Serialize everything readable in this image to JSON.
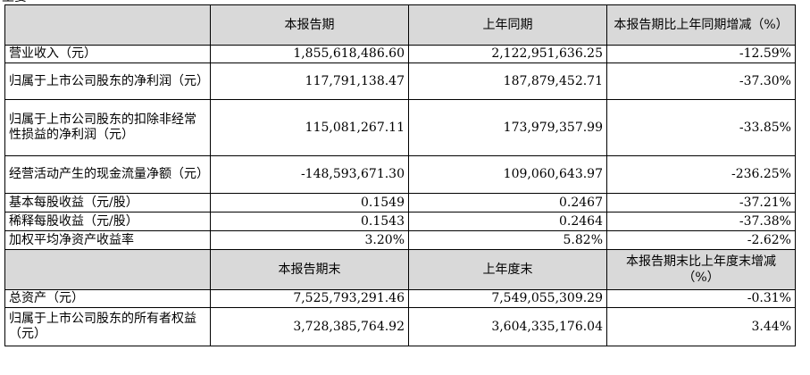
{
  "top_fragment": "主要",
  "header1": {
    "col2": "本报告期",
    "col3": "上年同期",
    "col4": "本报告期比上年同期增减（%）"
  },
  "rows1": [
    {
      "label": "营业收入（元）",
      "current": "1,855,618,486.60",
      "prior": "2,122,951,636.25",
      "change": "-12.59%"
    },
    {
      "label": "归属于上市公司股东的净利润（元）",
      "current": "117,791,138.47",
      "prior": "187,879,452.71",
      "change": "-37.30%"
    },
    {
      "label": "归属于上市公司股东的扣除非经常性损益的净利润（元）",
      "current": "115,081,267.11",
      "prior": "173,979,357.99",
      "change": "-33.85%"
    },
    {
      "label": "经营活动产生的现金流量净额（元）",
      "current": "-148,593,671.30",
      "prior": "109,060,643.97",
      "change": "-236.25%"
    },
    {
      "label": "基本每股收益（元/股）",
      "current": "0.1549",
      "prior": "0.2467",
      "change": "-37.21%"
    },
    {
      "label": "稀释每股收益（元/股）",
      "current": "0.1543",
      "prior": "0.2464",
      "change": "-37.38%"
    },
    {
      "label": "加权平均净资产收益率",
      "current": "3.20%",
      "prior": "5.82%",
      "change": "-2.62%"
    }
  ],
  "header2": {
    "col2": "本报告期末",
    "col3": "上年度末",
    "col4": "本报告期末比上年度末增减（%）"
  },
  "rows2": [
    {
      "label": "总资产（元）",
      "current": "7,525,793,291.46",
      "prior": "7,549,055,309.29",
      "change": "-0.31%"
    },
    {
      "label": "归属于上市公司股东的所有者权益（元）",
      "current": "3,728,385,764.92",
      "prior": "3,604,335,176.04",
      "change": "3.44%"
    }
  ]
}
